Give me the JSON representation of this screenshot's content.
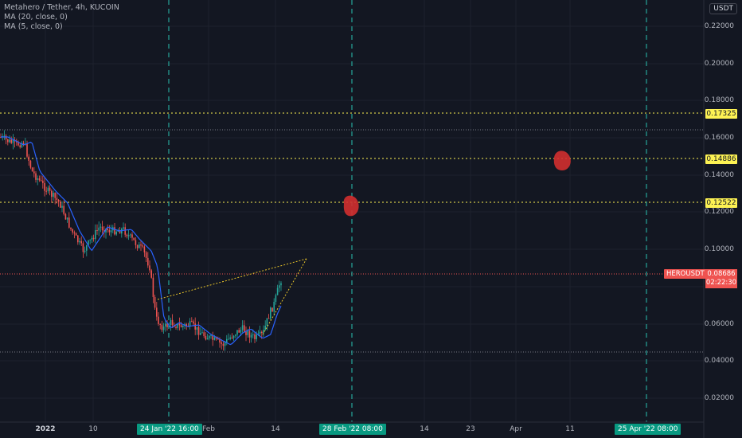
{
  "legend": {
    "title": "Metahero / Tether, 4h, KUCOIN",
    "ma20": "MA (20, close, 0)",
    "ma5": "MA (5, close, 0)"
  },
  "currency": "USDT",
  "price_axis": {
    "labels": [
      "0.22000",
      "0.20000",
      "0.18000",
      "0.16000",
      "0.14000",
      "0.12000",
      "0.10000",
      "0.06000",
      "0.04000",
      "0.02000"
    ]
  },
  "levels": {
    "l1": "0.17325",
    "l2": "0.14886",
    "l3": "0.12522"
  },
  "symbol": {
    "name": "HEROUSDT",
    "price": "0.08686",
    "countdown": "02:22:30"
  },
  "time_axis": {
    "year": "2022",
    "d10": "10",
    "feb": "Feb",
    "d14": "14",
    "d14b": "14",
    "d23": "23",
    "apr": "Apr",
    "d11": "11",
    "tag1": "24 Jan '22   16:00",
    "tag2": "28 Feb '22   08:00",
    "tag3": "25 Apr '22   08:00"
  },
  "colors": {
    "background": "#131722",
    "up": "#26a69a",
    "down": "#ef5350",
    "level": "#fdf253",
    "vline": "#26a69a",
    "ma20": "#2962ff",
    "marker": "#d32f2f"
  }
}
